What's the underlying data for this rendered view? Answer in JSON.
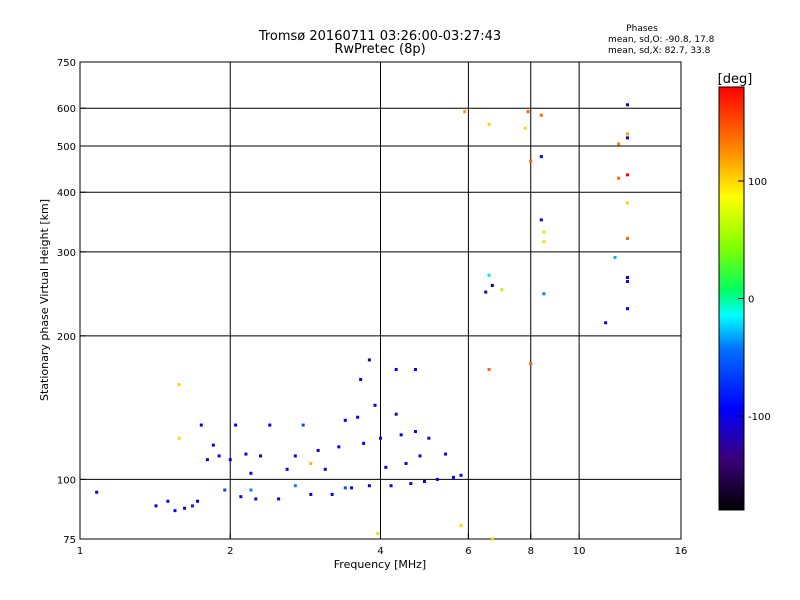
{
  "chart_data": {
    "type": "scatter",
    "title": "Tromsø 20160711 03:26:00-03:27:43",
    "subtitle": "RwPretec (8p)",
    "phase_title": "Phases",
    "phase_stats": [
      "mean, sd,O: -90.8, 17.8",
      "mean, sd,X:  82.7, 33.8"
    ],
    "xlabel": "Frequency [MHz]",
    "ylabel": "Stationary phase Virtual Height [km]",
    "x_scale": "log",
    "y_scale": "log",
    "xlim": [
      1,
      16
    ],
    "ylim": [
      75,
      750
    ],
    "x_ticks": [
      1,
      2,
      4,
      6,
      8,
      10,
      16
    ],
    "x_tick_labels": [
      "1",
      "2",
      "4",
      "6",
      "8",
      "10",
      "16"
    ],
    "x_gridlines": [
      2,
      4,
      6,
      8,
      10
    ],
    "y_ticks": [
      75,
      100,
      200,
      300,
      400,
      500,
      600,
      750
    ],
    "y_tick_labels": [
      "75",
      "100",
      "200",
      "300",
      "400",
      "500",
      "600",
      "750"
    ],
    "y_gridlines": [
      100,
      200,
      300,
      400,
      500,
      600
    ],
    "grid": true,
    "colorbar": {
      "label": "[deg]",
      "range": [
        -180,
        180
      ],
      "ticks": [
        100,
        0,
        -100
      ],
      "tick_labels": [
        "100",
        "0",
        "-100"
      ]
    },
    "series": [
      {
        "points": [
          [
            1.08,
            94,
            -100
          ],
          [
            1.42,
            88,
            -110
          ],
          [
            1.5,
            90,
            -95
          ],
          [
            1.55,
            86,
            -90
          ],
          [
            1.62,
            87,
            -100
          ],
          [
            1.68,
            88,
            -80
          ],
          [
            1.72,
            90,
            -100
          ],
          [
            1.75,
            130,
            -110
          ],
          [
            1.8,
            110,
            -120
          ],
          [
            1.85,
            118,
            -100
          ],
          [
            1.9,
            112,
            -90
          ],
          [
            1.95,
            95,
            -60
          ],
          [
            2.0,
            110,
            -100
          ],
          [
            2.05,
            130,
            -105
          ],
          [
            2.1,
            92,
            -100
          ],
          [
            2.15,
            113,
            -95
          ],
          [
            2.2,
            103,
            -100
          ],
          [
            2.25,
            91,
            -90
          ],
          [
            2.3,
            112,
            -110
          ],
          [
            2.4,
            130,
            -100
          ],
          [
            2.5,
            91,
            -100
          ],
          [
            2.6,
            105,
            -90
          ],
          [
            2.7,
            112,
            -100
          ],
          [
            2.8,
            130,
            -60
          ],
          [
            2.9,
            93,
            -100
          ],
          [
            3.0,
            115,
            -100
          ],
          [
            3.1,
            105,
            -110
          ],
          [
            3.2,
            93,
            -100
          ],
          [
            3.3,
            117,
            -95
          ],
          [
            3.4,
            133,
            -100
          ],
          [
            3.5,
            96,
            -100
          ],
          [
            3.6,
            135,
            -100
          ],
          [
            3.7,
            119,
            -100
          ],
          [
            3.8,
            97,
            -110
          ],
          [
            3.9,
            143,
            -100
          ],
          [
            4.0,
            122,
            -90
          ],
          [
            4.1,
            106,
            -100
          ],
          [
            4.2,
            97,
            -100
          ],
          [
            4.3,
            137,
            -110
          ],
          [
            4.4,
            124,
            -100
          ],
          [
            4.5,
            108,
            -100
          ],
          [
            4.6,
            98,
            -100
          ],
          [
            4.7,
            126,
            -100
          ],
          [
            4.8,
            112,
            -100
          ],
          [
            4.9,
            99,
            -100
          ],
          [
            5.0,
            122,
            -90
          ],
          [
            5.2,
            100,
            -100
          ],
          [
            5.4,
            113,
            -100
          ],
          [
            5.6,
            101,
            -100
          ],
          [
            5.8,
            102,
            -100
          ],
          [
            2.2,
            95,
            -40
          ],
          [
            2.7,
            97,
            -40
          ],
          [
            3.4,
            96,
            -60
          ],
          [
            2.9,
            108,
            110
          ],
          [
            1.58,
            158,
            100
          ],
          [
            1.58,
            122,
            100
          ],
          [
            3.65,
            162,
            -100
          ],
          [
            3.8,
            178,
            -140
          ],
          [
            4.3,
            170,
            -100
          ],
          [
            4.7,
            170,
            -100
          ],
          [
            3.95,
            77,
            100
          ],
          [
            5.8,
            80,
            100
          ],
          [
            5.9,
            590,
            120
          ],
          [
            6.6,
            555,
            100
          ],
          [
            6.7,
            75,
            100
          ],
          [
            6.6,
            170,
            140
          ],
          [
            6.5,
            247,
            -120
          ],
          [
            6.7,
            255,
            -150
          ],
          [
            6.6,
            268,
            -20
          ],
          [
            7.0,
            250,
            60
          ],
          [
            7.8,
            545,
            100
          ],
          [
            7.9,
            590,
            140
          ],
          [
            8.0,
            465,
            140
          ],
          [
            8.0,
            175,
            140
          ],
          [
            8.4,
            580,
            140
          ],
          [
            8.4,
            475,
            -100
          ],
          [
            8.4,
            350,
            -110
          ],
          [
            8.5,
            330,
            100
          ],
          [
            8.5,
            315,
            100
          ],
          [
            8.5,
            245,
            -40
          ],
          [
            11.3,
            213,
            -100
          ],
          [
            11.8,
            292,
            -30
          ],
          [
            12.0,
            505,
            130
          ],
          [
            12.0,
            428,
            140
          ],
          [
            12.5,
            610,
            -110
          ],
          [
            12.5,
            530,
            120
          ],
          [
            12.5,
            520,
            -110
          ],
          [
            12.5,
            435,
            180
          ],
          [
            12.5,
            380,
            100
          ],
          [
            12.5,
            320,
            140
          ],
          [
            12.5,
            265,
            -100
          ],
          [
            12.5,
            260,
            -110
          ],
          [
            12.5,
            228,
            -100
          ]
        ]
      }
    ]
  }
}
